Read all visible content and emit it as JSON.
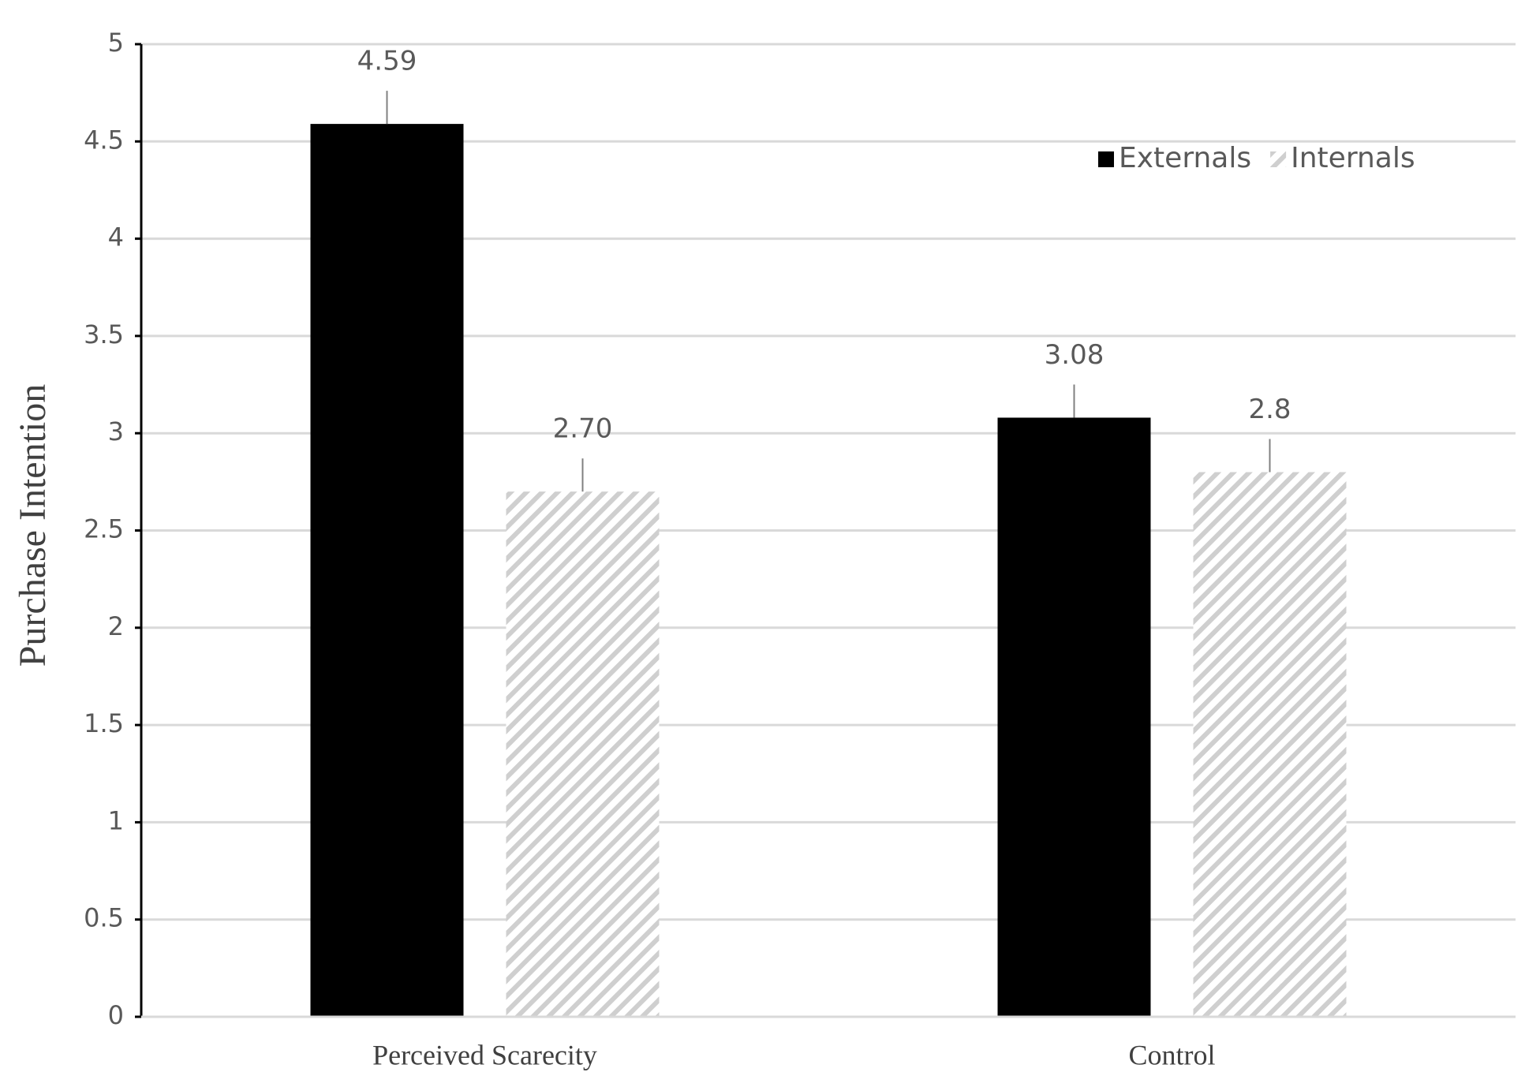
{
  "chart_data": {
    "type": "bar",
    "y_label": "Purchase Intention",
    "categories": [
      "Perceived Scarecity",
      "Control"
    ],
    "series": [
      {
        "name": "Externals",
        "color": "#000000",
        "values": [
          4.59,
          3.08
        ]
      },
      {
        "name": "Internals",
        "color": "#cfcfcf",
        "hatch": true,
        "values": [
          2.7,
          2.8
        ],
        "value_labels": [
          "2.70",
          "2.8"
        ]
      }
    ],
    "ylim": [
      0,
      5
    ],
    "yticks": [
      0,
      0.5,
      1,
      1.5,
      2,
      2.5,
      3,
      3.5,
      4,
      4.5,
      5
    ],
    "grid": true,
    "legend": "upper right"
  }
}
